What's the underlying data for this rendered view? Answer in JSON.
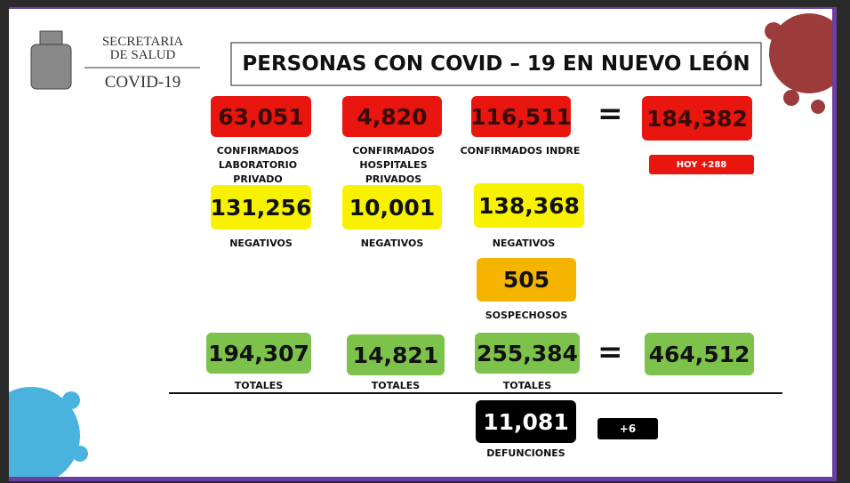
{
  "header": {
    "org_line1": "SECRETARIA",
    "org_line2": "DE SALUD",
    "program": "COVID-19",
    "title": "PERSONAS CON COVID – 19 EN NUEVO LEÓN"
  },
  "operator": "=",
  "confirmed": {
    "cells": [
      {
        "value": "63,051",
        "label": "CONFIRMADOS LABORATORIO PRIVADO"
      },
      {
        "value": "4,820",
        "label": "CONFIRMADOS HOSPITALES PRIVADOS"
      },
      {
        "value": "116,511",
        "label": "CONFIRMADOS INDRE"
      }
    ],
    "total": "184,382",
    "today": "HOY +288"
  },
  "negatives": [
    {
      "value": "131,256",
      "label": "NEGATIVOS"
    },
    {
      "value": "10,001",
      "label": "NEGATIVOS"
    },
    {
      "value": "138,368",
      "label": "NEGATIVOS"
    }
  ],
  "suspected": {
    "value": "505",
    "label": "SOSPECHOSOS"
  },
  "totals": {
    "cells": [
      {
        "value": "194,307",
        "label": "TOTALES"
      },
      {
        "value": "14,821",
        "label": "TOTALES"
      },
      {
        "value": "255,384",
        "label": "TOTALES"
      }
    ],
    "total": "464,512"
  },
  "deaths": {
    "value": "11,081",
    "label": "DEFUNCIONES",
    "today": "+6"
  }
}
